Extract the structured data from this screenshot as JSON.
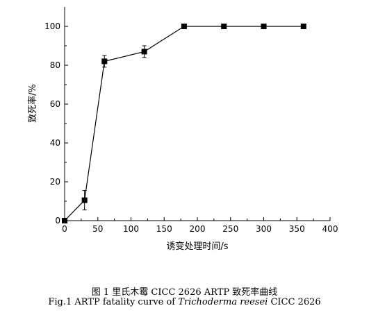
{
  "chart_data": {
    "type": "line",
    "title": "",
    "xlabel": "诱变处理时间/s",
    "ylabel": "致死率/%",
    "xlim": [
      0,
      400
    ],
    "ylim": [
      0,
      110
    ],
    "x_ticks": [
      0,
      50,
      100,
      150,
      200,
      250,
      300,
      350,
      400
    ],
    "y_ticks": [
      0,
      20,
      40,
      60,
      80,
      100
    ],
    "grid": false,
    "legend": "none",
    "marker": "square",
    "line_color": "#000000",
    "series": [
      {
        "x": [
          0,
          30,
          60,
          120,
          180,
          240,
          300,
          360
        ],
        "y": [
          0,
          10.5,
          82,
          87,
          100,
          100,
          100,
          100
        ],
        "error": [
          0,
          5,
          3,
          3,
          0,
          0,
          0,
          0
        ]
      }
    ]
  },
  "caption": {
    "cn": "图 1 里氏木霉 CICC 2626 ARTP 致死率曲线",
    "en_prefix": "Fig.1 ARTP fatality curve of ",
    "en_species": "Trichoderma reesei",
    "en_suffix": " CICC 2626"
  }
}
